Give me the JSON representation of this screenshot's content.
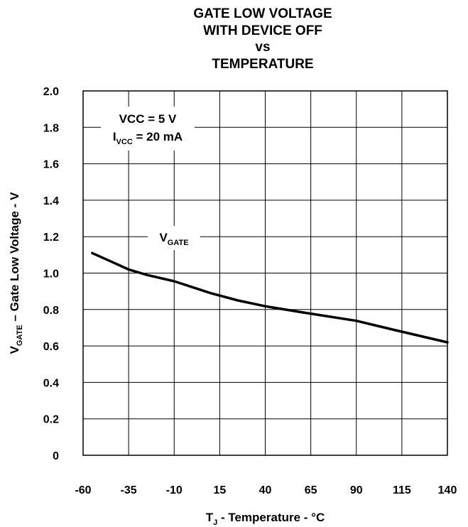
{
  "chart_data": {
    "type": "line",
    "title_lines": [
      "GATE LOW VOLTAGE",
      "WITH DEVICE OFF",
      "vs",
      "TEMPERATURE"
    ],
    "ylabel": {
      "main": "V",
      "sub": "GATE",
      "rest": " – Gate Low Voltage - V"
    },
    "xlabel": {
      "main": "T",
      "sub": "J",
      "rest": " - Temperature - °C"
    },
    "xlim": [
      -60,
      140
    ],
    "ylim": [
      0,
      2.0
    ],
    "x_ticks": [
      "-60",
      "-35",
      "-10",
      "15",
      "40",
      "65",
      "90",
      "115",
      "140"
    ],
    "x_tick_values": [
      -60,
      -35,
      -10,
      15,
      40,
      65,
      90,
      115,
      140
    ],
    "y_ticks": [
      "0",
      "0.2",
      "0.4",
      "0.6",
      "0.8",
      "1.0",
      "1.2",
      "1.4",
      "1.6",
      "1.8",
      "2.0"
    ],
    "y_tick_values": [
      0,
      0.2,
      0.4,
      0.6,
      0.8,
      1.0,
      1.2,
      1.4,
      1.6,
      1.8,
      2.0
    ],
    "grid": true,
    "annotation": {
      "line1": "VCC = 5 V",
      "line2_main": "I",
      "line2_sub": "VCC",
      "line2_rest": " = 20 mA"
    },
    "series": [
      {
        "name": "V_GATE",
        "label_main": "V",
        "label_sub": "GATE",
        "x": [
          -55,
          -45,
          -35,
          -25,
          -10,
          10,
          25,
          40,
          60,
          90,
          110,
          125,
          140
        ],
        "y": [
          1.11,
          1.065,
          1.02,
          0.99,
          0.955,
          0.89,
          0.85,
          0.818,
          0.785,
          0.738,
          0.69,
          0.655,
          0.62
        ]
      }
    ]
  }
}
